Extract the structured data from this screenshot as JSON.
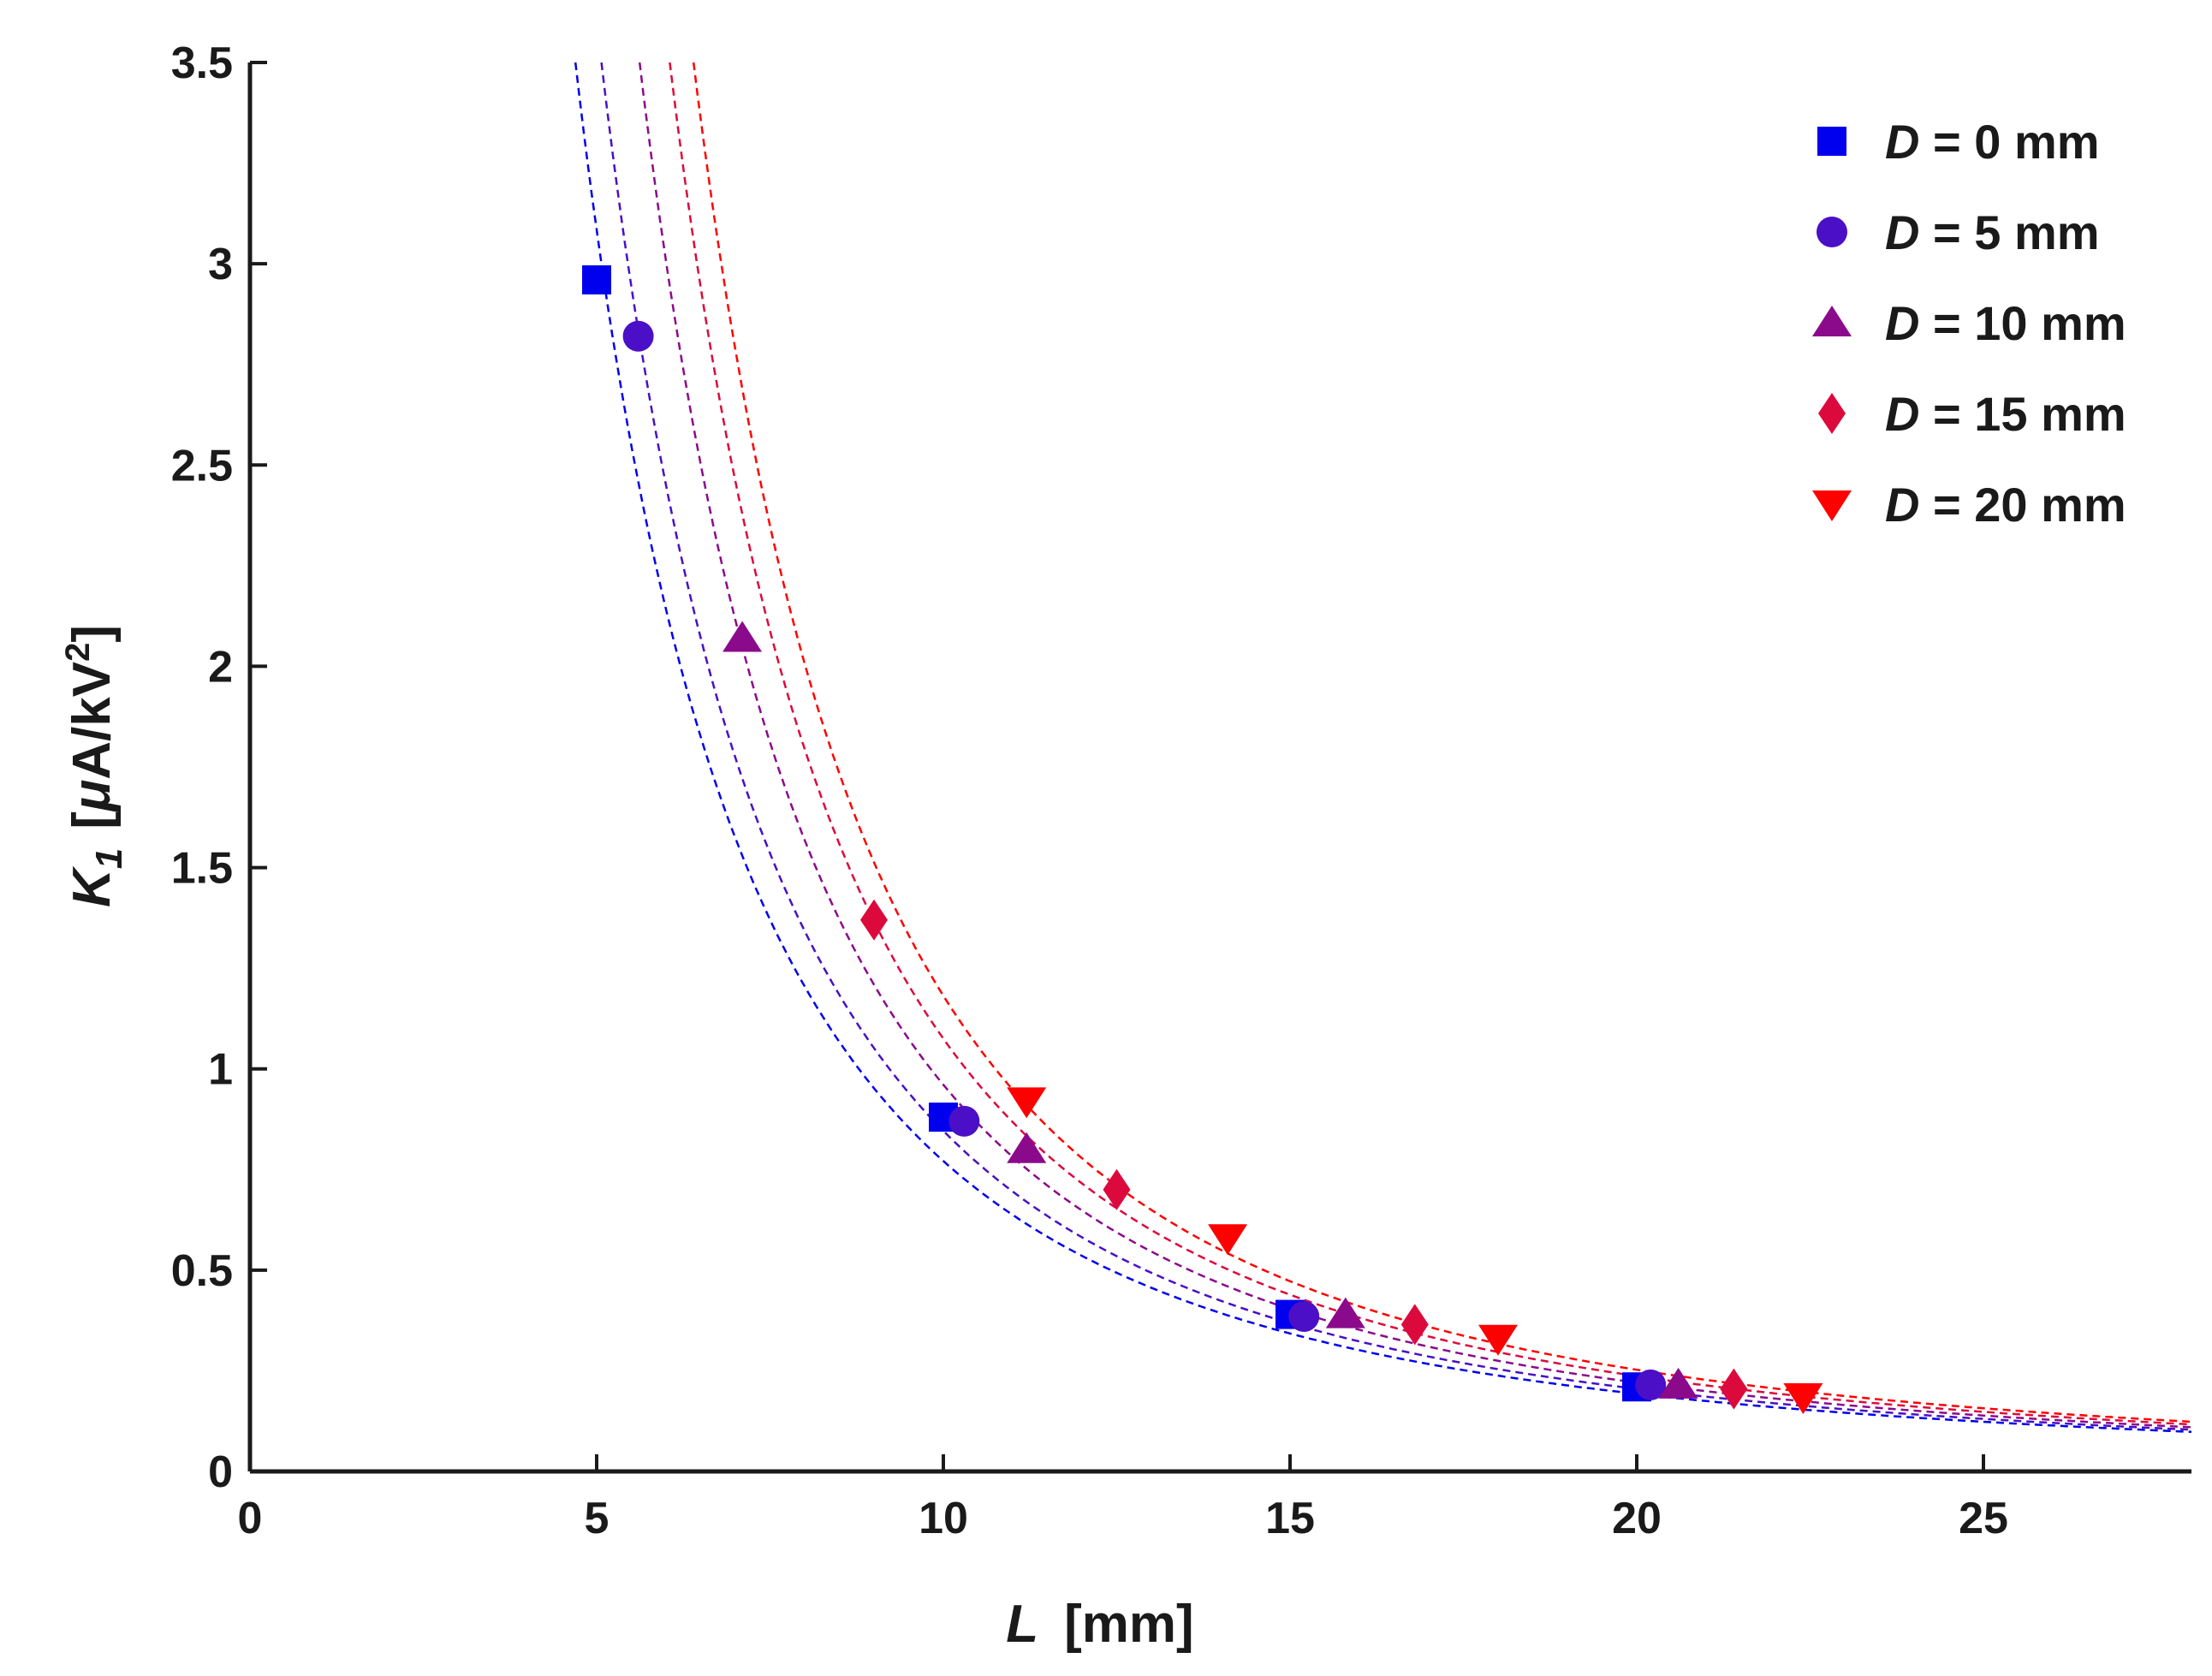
{
  "chart_data": {
    "type": "scatter",
    "title": "",
    "xlabel": {
      "var": "L",
      "unit": "[mm]"
    },
    "ylabel": {
      "var": "K",
      "sub": "1",
      "unit_pre": "[",
      "unit_mu": "μ",
      "unit_mid": "A/kV",
      "unit_sup": "2",
      "unit_post": "]"
    },
    "xlim": [
      0,
      28
    ],
    "ylim": [
      0,
      3.5
    ],
    "xticks": [
      0,
      5,
      10,
      15,
      20,
      25
    ],
    "xtick_labels": [
      "0",
      "5",
      "10",
      "15",
      "20",
      "25"
    ],
    "yticks": [
      0,
      0.5,
      1,
      1.5,
      2,
      2.5,
      3,
      3.5
    ],
    "ytick_labels": [
      "0",
      "0.5",
      "1",
      "1.5",
      "2",
      "2.5",
      "3",
      "3.5"
    ],
    "grid": false,
    "legend_position": "top-right",
    "series": [
      {
        "name": "D = 0 mm",
        "legend_var": "D",
        "legend_rest": " = 0 mm",
        "marker": "square",
        "color": "#0000ee",
        "points": [
          [
            5.0,
            2.96
          ],
          [
            10.0,
            0.88
          ],
          [
            15.0,
            0.39
          ],
          [
            20.0,
            0.21
          ]
        ],
        "fit": {
          "a": 77.1,
          "b": 0.0
        }
      },
      {
        "name": "D = 5 mm",
        "legend_var": "D",
        "legend_rest": " = 5 mm",
        "marker": "circle",
        "color": "#4a0fc6",
        "points": [
          [
            5.6,
            2.82
          ],
          [
            10.3,
            0.87
          ],
          [
            15.2,
            0.385
          ],
          [
            20.2,
            0.215
          ]
        ],
        "fit": {
          "a": 79.6,
          "b": 0.3
        }
      },
      {
        "name": "D = 10 mm",
        "legend_var": "D",
        "legend_rest": " = 10 mm",
        "marker": "triangle-up",
        "color": "#8b0a8b",
        "points": [
          [
            7.1,
            2.07
          ],
          [
            11.2,
            0.8
          ],
          [
            15.8,
            0.39
          ],
          [
            20.6,
            0.215
          ]
        ],
        "fit": {
          "a": 81.3,
          "b": 0.8
        }
      },
      {
        "name": "D = 15 mm",
        "legend_var": "D",
        "legend_rest": " = 15 mm",
        "marker": "diamond",
        "color": "#dc0a3c",
        "points": [
          [
            9.0,
            1.37
          ],
          [
            12.5,
            0.7
          ],
          [
            16.8,
            0.365
          ],
          [
            21.4,
            0.205
          ]
        ],
        "fit": {
          "a": 84.2,
          "b": 1.15
        }
      },
      {
        "name": "D = 20 mm",
        "legend_var": "D",
        "legend_rest": " = 20 mm",
        "marker": "triangle-down",
        "color": "#ff0000",
        "points": [
          [
            11.2,
            0.92
          ],
          [
            14.1,
            0.58
          ],
          [
            18.0,
            0.33
          ],
          [
            22.4,
            0.185
          ]
        ],
        "fit": {
          "a": 87.4,
          "b": 1.4
        }
      }
    ]
  }
}
